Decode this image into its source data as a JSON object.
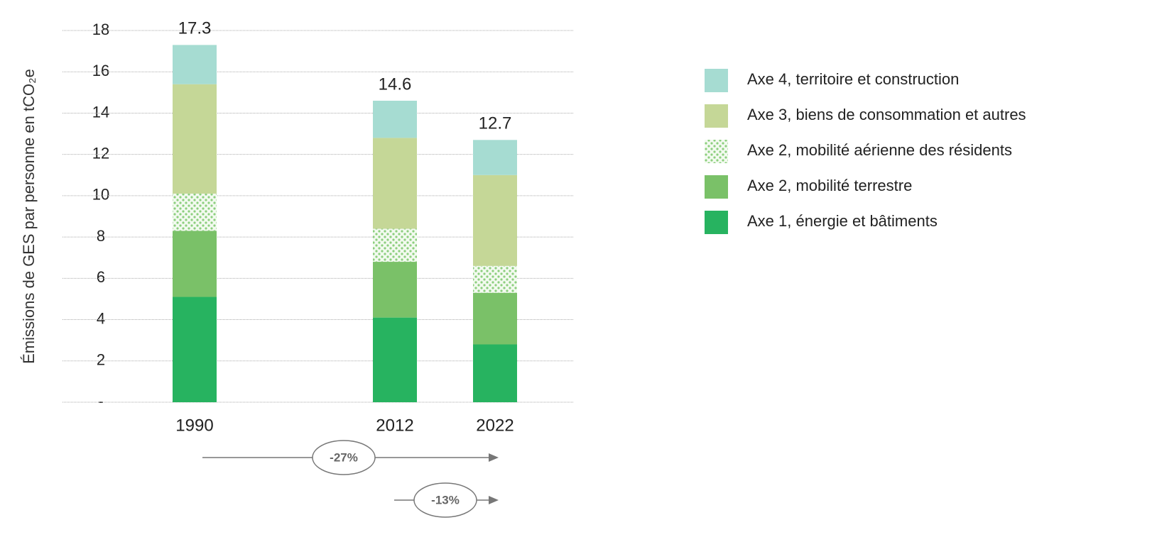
{
  "chart_data": {
    "type": "stacked_bar",
    "y_label": "Émissions de GES par personne en tCO₂e",
    "categories": [
      "1990",
      "2012",
      "2022"
    ],
    "series": [
      {
        "name": "Axe 1, énergie et bâtiments",
        "color": "#27b360",
        "values": [
          5.1,
          4.1,
          2.8
        ]
      },
      {
        "name": "Axe 2, mobilité terrestre",
        "color": "#7ac168",
        "values": [
          3.2,
          2.7,
          2.5
        ]
      },
      {
        "name": "Axe 2, mobilité aérienne des résidents",
        "color": "#8ccf7e",
        "pattern": "dots",
        "values": [
          1.8,
          1.6,
          1.3
        ]
      },
      {
        "name": "Axe 3, biens de consommation et autres",
        "color": "#c5d797",
        "values": [
          5.3,
          4.4,
          4.4
        ]
      },
      {
        "name": "Axe 4, territoire et construction",
        "color": "#a6dcd2",
        "values": [
          1.9,
          1.8,
          1.7
        ]
      }
    ],
    "totals": [
      17.3,
      14.6,
      12.7
    ],
    "ylim": [
      0,
      18
    ],
    "yticks": [
      {
        "value": 0,
        "label": "-"
      },
      2,
      4,
      6,
      8,
      10,
      12,
      14,
      16,
      18
    ],
    "grid": true,
    "legend": "right",
    "annotations": [
      "-27%",
      "-13%"
    ]
  }
}
